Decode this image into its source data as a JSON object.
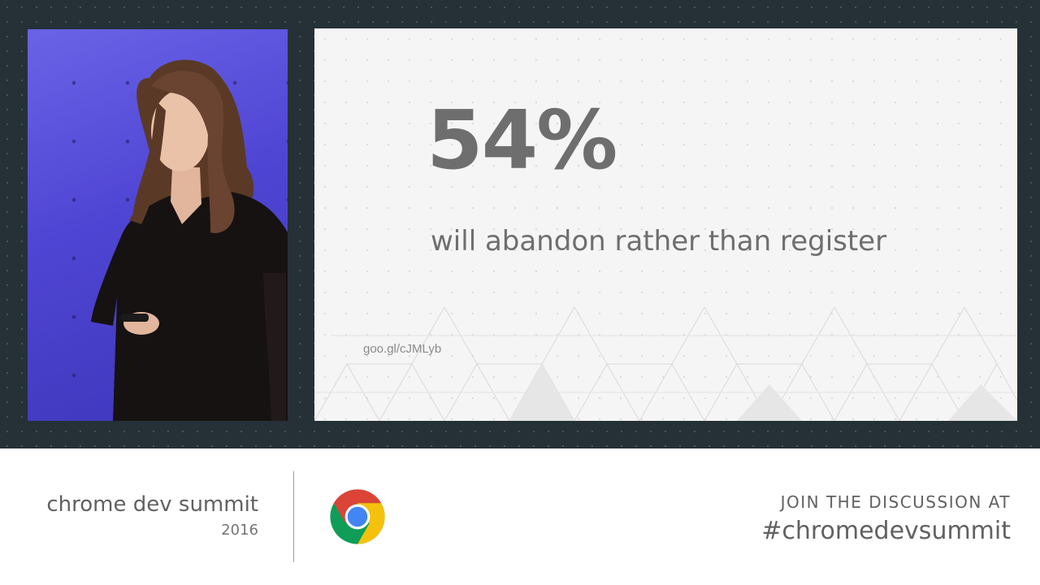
{
  "slide": {
    "stat": "54%",
    "statement": "will abandon rather than register",
    "link": "goo.gl/cJMLyb"
  },
  "footer": {
    "brand": "chrome dev summit",
    "year": "2016",
    "join": "JOIN THE DISCUSSION AT",
    "hashtag": "#chromedevsummit"
  },
  "icons": {
    "logo": "chrome-logo-icon"
  },
  "colors": {
    "stage_background": "#253137",
    "speaker_backdrop": "#5a52de",
    "slide_background": "#f5f5f5",
    "slide_text": "#6e6e6e",
    "footer_text": "#616161",
    "chrome_red": "#db4437",
    "chrome_yellow": "#f4c20d",
    "chrome_green": "#0f9d58",
    "chrome_blue": "#4285f4"
  }
}
